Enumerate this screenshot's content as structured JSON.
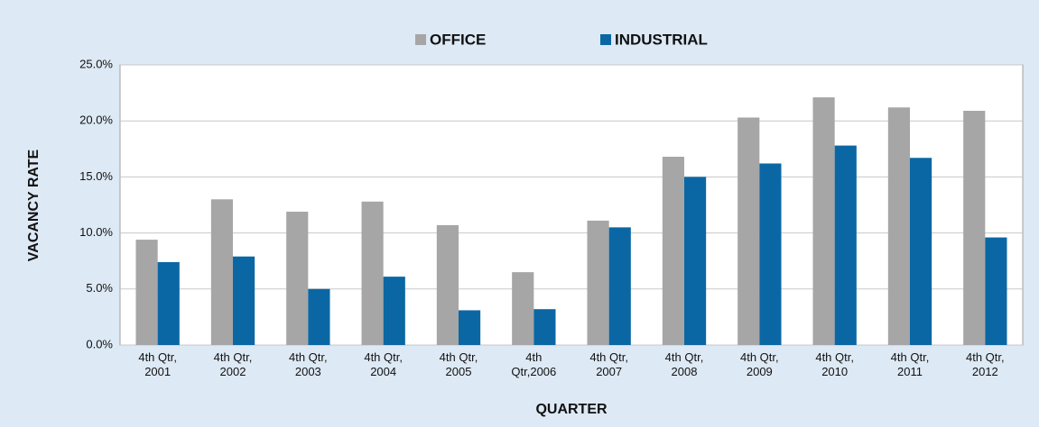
{
  "chart_data": {
    "type": "bar",
    "x_label": "QUARTER",
    "y_label": "VACANCY RATE",
    "categories": [
      "4th Qtr,\n2001",
      "4th Qtr,\n2002",
      "4th Qtr,\n2003",
      "4th Qtr,\n2004",
      "4th Qtr,\n2005",
      "4th\nQtr,2006",
      "4th Qtr,\n2007",
      "4th Qtr,\n2008",
      "4th Qtr,\n2009",
      "4th Qtr,\n2010",
      "4th Qtr,\n2011",
      "4th Qtr,\n2012"
    ],
    "series": [
      {
        "name": "OFFICE",
        "color": "#a6a6a6",
        "values": [
          9.4,
          13.0,
          11.9,
          12.8,
          10.7,
          6.5,
          11.1,
          16.8,
          20.3,
          22.1,
          21.2,
          20.9
        ]
      },
      {
        "name": "INDUSTRIAL",
        "color": "#0b67a4",
        "values": [
          7.4,
          7.9,
          5.0,
          6.1,
          3.1,
          3.2,
          10.5,
          15.0,
          16.2,
          17.8,
          16.7,
          9.6
        ]
      }
    ],
    "ylim": [
      0,
      25
    ],
    "yticks": [
      {
        "value": 0,
        "label": "0.0%"
      },
      {
        "value": 5,
        "label": "5.0%"
      },
      {
        "value": 10,
        "label": "10.0%"
      },
      {
        "value": 15,
        "label": "15.0%"
      },
      {
        "value": 20,
        "label": "20.0%"
      },
      {
        "value": 25,
        "label": "25.0%"
      }
    ],
    "grid": true,
    "legend": "top"
  }
}
